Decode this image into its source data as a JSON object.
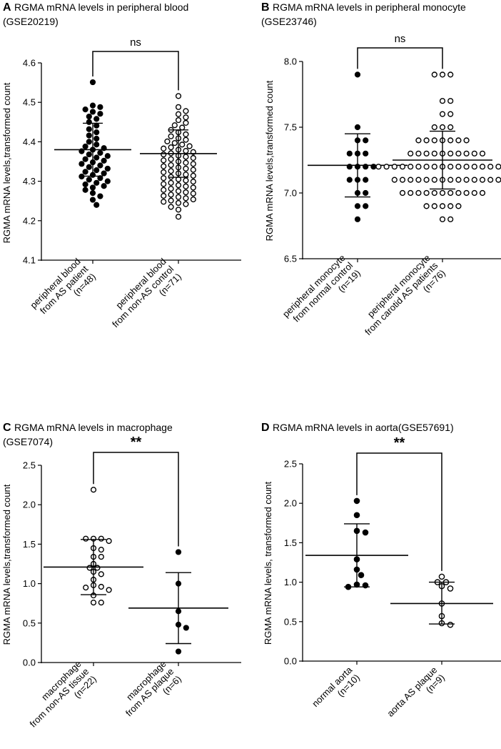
{
  "chart_data": [
    {
      "panel": "A",
      "type": "scatter",
      "title": "RGMA mRNA levels in peripheral blood",
      "subtitle": "(GSE20219)",
      "xlabel": "",
      "ylabel": "RGMA mRNA levels,transformed count",
      "ylim": [
        4.1,
        4.6
      ],
      "yticks": [
        "4.1",
        "4.2",
        "4.3",
        "4.4",
        "4.5",
        "4.6"
      ],
      "significance": "ns",
      "groups": [
        {
          "label_lines": [
            "peripheral blood",
            "from AS patient",
            "(n=48)"
          ],
          "filled": true,
          "mean": 4.38,
          "sd_upper": 4.447,
          "sd_lower": 4.313,
          "values": [
            4.551,
            4.492,
            4.488,
            4.482,
            4.476,
            4.471,
            4.464,
            4.458,
            4.45,
            4.441,
            4.432,
            4.424,
            4.416,
            4.408,
            4.4,
            4.393,
            4.388,
            4.384,
            4.38,
            4.376,
            4.372,
            4.368,
            4.364,
            4.36,
            4.356,
            4.352,
            4.348,
            4.344,
            4.34,
            4.336,
            4.332,
            4.328,
            4.324,
            4.32,
            4.316,
            4.312,
            4.308,
            4.304,
            4.3,
            4.296,
            4.292,
            4.288,
            4.284,
            4.278,
            4.27,
            4.262,
            4.253,
            4.24
          ]
        },
        {
          "label_lines": [
            "peripheral blood",
            "from non-AS control",
            "(n=71)"
          ],
          "filled": false,
          "mean": 4.37,
          "sd_upper": 4.43,
          "sd_lower": 4.31,
          "values": [
            4.516,
            4.488,
            4.478,
            4.47,
            4.462,
            4.455,
            4.448,
            4.442,
            4.436,
            4.43,
            4.424,
            4.419,
            4.414,
            4.409,
            4.405,
            4.401,
            4.397,
            4.393,
            4.389,
            4.386,
            4.383,
            4.38,
            4.377,
            4.374,
            4.371,
            4.368,
            4.365,
            4.362,
            4.359,
            4.356,
            4.353,
            4.35,
            4.347,
            4.344,
            4.341,
            4.338,
            4.335,
            4.332,
            4.329,
            4.326,
            4.323,
            4.32,
            4.317,
            4.314,
            4.311,
            4.308,
            4.305,
            4.302,
            4.299,
            4.296,
            4.293,
            4.29,
            4.287,
            4.284,
            4.281,
            4.278,
            4.275,
            4.272,
            4.269,
            4.266,
            4.263,
            4.26,
            4.257,
            4.254,
            4.251,
            4.248,
            4.245,
            4.242,
            4.235,
            4.228,
            4.21
          ]
        }
      ]
    },
    {
      "panel": "B",
      "type": "scatter",
      "title": "RGMA mRNA levels in peripheral monocyte",
      "subtitle": "(GSE23746)",
      "xlabel": "",
      "ylabel": "RGMA mRNA levels,transformed count",
      "ylim": [
        6.5,
        8.0
      ],
      "yticks": [
        "6.5",
        "7.0",
        "7.5",
        "8.0"
      ],
      "significance": "ns",
      "groups": [
        {
          "label_lines": [
            "peripheral monocyte",
            "from normal control",
            "(n=19)"
          ],
          "filled": true,
          "mean": 7.21,
          "sd_upper": 7.45,
          "sd_lower": 6.97,
          "values": [
            7.9,
            7.5,
            7.4,
            7.4,
            7.3,
            7.3,
            7.3,
            7.2,
            7.2,
            7.2,
            7.2,
            7.1,
            7.1,
            7.1,
            7.0,
            7.0,
            6.9,
            6.9,
            6.8
          ]
        },
        {
          "label_lines": [
            "peripheral monocyte",
            "from carotid AS patients",
            "(n=76)"
          ],
          "filled": false,
          "mean": 7.25,
          "sd_upper": 7.47,
          "sd_lower": 7.03,
          "values": [
            7.9,
            7.9,
            7.9,
            7.7,
            7.7,
            7.6,
            7.6,
            7.5,
            7.5,
            7.5,
            7.4,
            7.4,
            7.4,
            7.4,
            7.4,
            7.4,
            7.4,
            7.3,
            7.3,
            7.3,
            7.3,
            7.3,
            7.3,
            7.3,
            7.3,
            7.3,
            7.3,
            7.2,
            7.2,
            7.2,
            7.2,
            7.2,
            7.2,
            7.2,
            7.2,
            7.2,
            7.2,
            7.2,
            7.2,
            7.2,
            7.2,
            7.2,
            7.2,
            7.2,
            7.1,
            7.1,
            7.1,
            7.1,
            7.1,
            7.1,
            7.1,
            7.1,
            7.1,
            7.1,
            7.1,
            7.1,
            7.1,
            7.1,
            7.0,
            7.0,
            7.0,
            7.0,
            7.0,
            7.0,
            7.0,
            7.0,
            7.0,
            7.0,
            7.0,
            6.9,
            6.9,
            6.9,
            6.9,
            6.9,
            6.8,
            6.8
          ]
        }
      ]
    },
    {
      "panel": "C",
      "type": "scatter",
      "title": "RGMA mRNA levels in macrophage",
      "subtitle": "(GSE7074)",
      "xlabel": "",
      "ylabel": "RGMA mRNA levels,transformed count",
      "ylim": [
        0.0,
        2.5
      ],
      "yticks": [
        "0.0",
        "0.5",
        "1.0",
        "1.5",
        "2.0",
        "2.5"
      ],
      "significance": "**",
      "groups": [
        {
          "label_lines": [
            "macrophage",
            "from non-AS tissue",
            "(n=22)"
          ],
          "filled": false,
          "mean": 1.21,
          "sd_upper": 1.56,
          "sd_lower": 0.86,
          "values": [
            2.19,
            1.57,
            1.57,
            1.57,
            1.54,
            1.45,
            1.43,
            1.34,
            1.34,
            1.25,
            1.2,
            1.2,
            1.15,
            1.12,
            1.05,
            0.98,
            0.96,
            0.95,
            0.92,
            0.85,
            0.76,
            0.76
          ]
        },
        {
          "label_lines": [
            "macrophage",
            "from AS plaque",
            "(n=6)"
          ],
          "filled": true,
          "mean": 0.69,
          "sd_upper": 1.14,
          "sd_lower": 0.24,
          "values": [
            1.4,
            1.0,
            0.65,
            0.48,
            0.44,
            0.14
          ]
        }
      ]
    },
    {
      "panel": "D",
      "type": "scatter",
      "title": "RGMA mRNA levels in aorta(GSE57691)",
      "subtitle": "",
      "xlabel": "",
      "ylabel": "RGMA mRNA levels, transformed count",
      "ylim": [
        0.0,
        2.5
      ],
      "yticks": [
        "0.0",
        "0.5",
        "1.0",
        "1.5",
        "2.0",
        "2.5"
      ],
      "significance": "**",
      "groups": [
        {
          "label_lines": [
            "normal aorta",
            "(n=10)"
          ],
          "filled": true,
          "mean": 1.34,
          "sd_upper": 1.74,
          "sd_lower": 0.94,
          "values": [
            2.03,
            1.85,
            1.65,
            1.63,
            1.29,
            1.16,
            1.09,
            0.97,
            0.96,
            0.94
          ]
        },
        {
          "label_lines": [
            "aorta AS plaque",
            "(n=9)"
          ],
          "filled": false,
          "mean": 0.73,
          "sd_upper": 1.0,
          "sd_lower": 0.47,
          "values": [
            1.07,
            1.0,
            1.0,
            0.95,
            0.92,
            0.73,
            0.57,
            0.48,
            0.46
          ]
        }
      ]
    }
  ]
}
